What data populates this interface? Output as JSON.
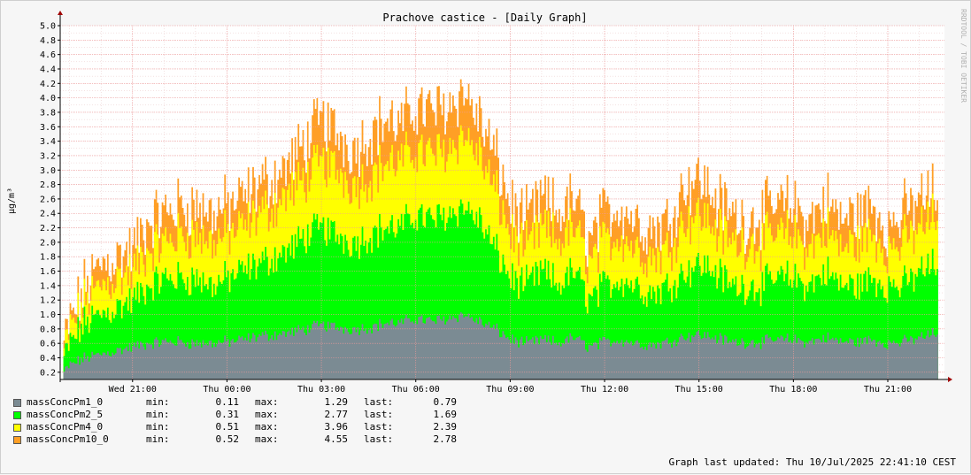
{
  "chart_data": {
    "type": "area",
    "title": "Prachove castice - [Daily Graph]",
    "ylabel": "µg/m³",
    "xlabel": "",
    "ylim": [
      0.1,
      5.0
    ],
    "y_ticks": [
      "0.2",
      "0.4",
      "0.6",
      "0.8",
      "1.0",
      "1.2",
      "1.4",
      "1.6",
      "1.8",
      "2.0",
      "2.2",
      "2.4",
      "2.6",
      "2.8",
      "3.0",
      "3.2",
      "3.4",
      "3.6",
      "3.8",
      "4.0",
      "4.2",
      "4.4",
      "4.6",
      "4.8",
      "5.0"
    ],
    "x_ticks": [
      "Wed 21:00",
      "Thu 00:00",
      "Thu 03:00",
      "Thu 06:00",
      "Thu 09:00",
      "Thu 12:00",
      "Thu 15:00",
      "Thu 18:00",
      "Thu 21:00"
    ],
    "x_range_hours": [
      -2.3,
      25.8
    ],
    "grid": true,
    "watermark": "RRDTOOL / TOBI OETIKER",
    "times": [
      -2.2,
      -2.0,
      -1.5,
      -1.0,
      -0.5,
      0.0,
      0.5,
      1.0,
      1.5,
      2.0,
      2.5,
      3.0,
      3.5,
      4.0,
      4.5,
      5.0,
      5.5,
      6.0,
      6.5,
      7.0,
      7.5,
      8.0,
      8.5,
      9.0,
      9.5,
      10.0,
      10.5,
      11.0,
      11.5,
      12.0,
      12.5,
      13.0,
      13.5,
      14.0,
      14.5,
      15.0,
      15.5,
      16.0,
      16.5,
      17.0,
      17.5,
      18.0,
      18.5,
      19.0,
      19.5,
      20.0,
      20.5,
      21.0,
      21.5,
      22.0,
      22.5,
      23.0,
      23.5,
      24.0,
      24.5,
      25.0,
      25.6
    ],
    "series": [
      {
        "name": "massConcPm10_0",
        "color": "#ff9f25",
        "values": [
          0.6,
          0.9,
          1.4,
          1.7,
          1.8,
          1.9,
          2.3,
          2.4,
          2.5,
          2.5,
          2.4,
          2.5,
          2.6,
          2.8,
          2.9,
          3.1,
          3.4,
          3.7,
          3.5,
          3.3,
          3.5,
          3.7,
          3.6,
          3.9,
          3.8,
          3.9,
          4.1,
          3.7,
          3.2,
          2.5,
          2.3,
          2.6,
          2.4,
          2.6,
          2.0,
          2.4,
          2.5,
          2.3,
          2.2,
          2.3,
          2.8,
          2.9,
          2.6,
          2.4,
          2.3,
          2.4,
          2.5,
          2.5,
          2.3,
          2.6,
          2.3,
          2.4,
          2.5,
          2.2,
          2.4,
          2.6,
          2.7
        ]
      },
      {
        "name": "massConcPm4_0",
        "color": "#ffff00",
        "values": [
          0.5,
          0.8,
          1.2,
          1.4,
          1.5,
          1.6,
          1.9,
          2.0,
          2.1,
          2.1,
          2.0,
          2.1,
          2.2,
          2.4,
          2.5,
          2.7,
          2.9,
          3.1,
          3.0,
          2.8,
          2.9,
          3.1,
          3.1,
          3.3,
          3.2,
          3.3,
          3.5,
          3.2,
          2.7,
          2.1,
          1.9,
          2.2,
          2.0,
          2.2,
          1.7,
          2.0,
          2.1,
          1.9,
          1.8,
          1.9,
          2.3,
          2.4,
          2.2,
          2.0,
          2.0,
          2.0,
          2.1,
          2.1,
          1.9,
          2.2,
          1.9,
          2.0,
          2.1,
          1.9,
          2.0,
          2.2,
          2.4
        ]
      },
      {
        "name": "massConcPm2_5",
        "color": "#00ff00",
        "values": [
          0.4,
          0.6,
          0.9,
          1.0,
          1.1,
          1.2,
          1.4,
          1.5,
          1.5,
          1.5,
          1.4,
          1.5,
          1.6,
          1.7,
          1.8,
          1.9,
          2.1,
          2.2,
          2.1,
          2.0,
          2.1,
          2.2,
          2.2,
          2.4,
          2.3,
          2.4,
          2.5,
          2.3,
          1.9,
          1.5,
          1.4,
          1.6,
          1.4,
          1.6,
          1.2,
          1.4,
          1.5,
          1.4,
          1.3,
          1.4,
          1.6,
          1.7,
          1.6,
          1.4,
          1.4,
          1.4,
          1.5,
          1.5,
          1.4,
          1.6,
          1.4,
          1.4,
          1.5,
          1.4,
          1.4,
          1.6,
          1.7
        ]
      },
      {
        "name": "massConcPm1_0",
        "color": "#7b8b93",
        "values": [
          0.2,
          0.3,
          0.4,
          0.45,
          0.5,
          0.55,
          0.6,
          0.62,
          0.62,
          0.6,
          0.6,
          0.62,
          0.65,
          0.7,
          0.72,
          0.75,
          0.8,
          0.85,
          0.82,
          0.8,
          0.82,
          0.88,
          0.88,
          0.95,
          0.9,
          0.95,
          1.0,
          0.9,
          0.8,
          0.65,
          0.6,
          0.65,
          0.6,
          0.68,
          0.55,
          0.62,
          0.65,
          0.6,
          0.58,
          0.62,
          0.7,
          0.72,
          0.68,
          0.62,
          0.62,
          0.62,
          0.65,
          0.65,
          0.62,
          0.68,
          0.62,
          0.62,
          0.65,
          0.6,
          0.62,
          0.68,
          0.75
        ]
      }
    ]
  },
  "legend": [
    {
      "name": "massConcPm1_0",
      "color": "#7b8b93",
      "min_label": "min:",
      "min": "0.11",
      "max_label": "max:",
      "max": "1.29",
      "last_label": "last:",
      "last": "0.79"
    },
    {
      "name": "massConcPm2_5",
      "color": "#00ff00",
      "min_label": "min:",
      "min": "0.31",
      "max_label": "max:",
      "max": "2.77",
      "last_label": "last:",
      "last": "1.69"
    },
    {
      "name": "massConcPm4_0",
      "color": "#ffff00",
      "min_label": "min:",
      "min": "0.51",
      "max_label": "max:",
      "max": "3.96",
      "last_label": "last:",
      "last": "2.39"
    },
    {
      "name": "massConcPm10_0",
      "color": "#ff9f25",
      "min_label": "min:",
      "min": "0.52",
      "max_label": "max:",
      "max": "4.55",
      "last_label": "last:",
      "last": "2.78"
    }
  ],
  "footer": "Graph last updated: Thu 10/Jul/2025 22:41:10 CEST"
}
